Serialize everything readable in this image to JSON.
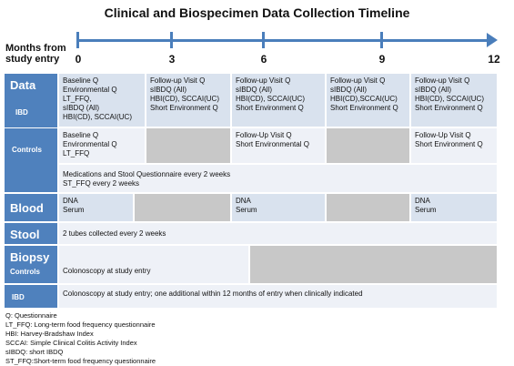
{
  "title": "Clinical and Biospecimen Data Collection Timeline",
  "axis": {
    "label_line1": "Months from",
    "label_line2": "study entry",
    "ticks": [
      "0",
      "3",
      "6",
      "9",
      "12"
    ]
  },
  "side": {
    "data": "Data",
    "ibd": "IBD",
    "controls": "Controls",
    "blood": "Blood",
    "stool": "Stool",
    "biopsy": "Biopsy",
    "biopsy_controls": "Controls",
    "biopsy_ibd": "IBD"
  },
  "cells": {
    "ibd_0": [
      "Baseline Q",
      "Environmental  Q",
      "LT_FFQ,",
      "sIBDQ (All)",
      "HBI(CD), SCCAI(UC)"
    ],
    "ibd_3": [
      "Follow-up Visit Q",
      "sIBDQ (All)",
      "HBI(CD), SCCAI(UC)",
      "Short  Environment Q"
    ],
    "ibd_6": [
      "Follow-up Visit Q",
      "sIBDQ (All)",
      "HBI(CD), SCCAI(UC)",
      "Short Environment Q"
    ],
    "ibd_9": [
      "Follow-up Visit Q",
      "sIBDQ (All)",
      "HBI(CD),SCCAI(UC)",
      "Short Environment Q"
    ],
    "ibd_12": [
      "Follow-up Visit Q",
      "sIBDQ (All)",
      "HBI(CD), SCCAI(UC)",
      "Short Environment Q"
    ],
    "controls_0": [
      "Baseline Q",
      "Environmental Q",
      "LT_FFQ"
    ],
    "controls_6": [
      "Follow-Up Visit Q",
      "Short Environmental Q"
    ],
    "controls_12": [
      "Follow-Up Visit Q",
      "Short Environment Q"
    ],
    "meds": [
      "Medications and Stool Questionnaire every 2 weeks",
      "ST_FFQ every 2 weeks"
    ],
    "blood_0": [
      "DNA",
      "Serum"
    ],
    "blood_6": [
      "DNA",
      "Serum"
    ],
    "blood_12": [
      "DNA",
      "Serum"
    ],
    "stool": "2 tubes collected every 2 weeks",
    "biopsy_controls": "Colonoscopy at study entry",
    "biopsy_ibd": "Colonoscopy at study entry; one additional within 12 months of entry when clinically indicated"
  },
  "legend": [
    "Q: Questionnaire",
    "LT_FFQ: Long-term food frequency questionnaire",
    "HBI: Harvey-Bradshaw Index",
    "SCCAI: Simple Clinical Colitis Activity Index",
    "sIBDQ: short IBDQ",
    "ST_FFQ:Short-term food frequency questionnaire"
  ],
  "colors": {
    "axis": "#4a7ebb",
    "side_header": "#4f81bd",
    "cell": "#d9e2ee",
    "cell_light": "#eef1f7",
    "gray": "#c8c8c8"
  }
}
